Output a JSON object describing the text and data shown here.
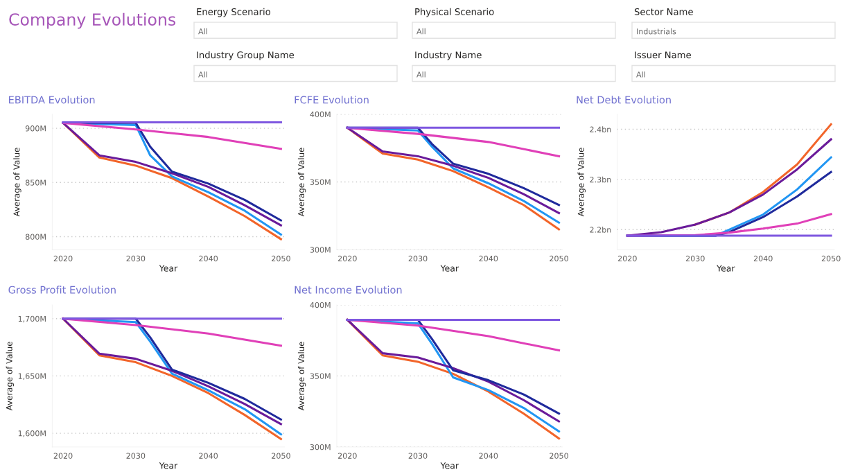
{
  "chart_data": [
    {
      "type": "other",
      "title": "Company Evolutions",
      "annotations": [
        "Energy Scenario",
        "All",
        "Physical Scenario",
        "All",
        "Sector Name",
        "Industrials",
        "Industry Group Name",
        "All",
        "Industry Name",
        "All",
        "Issuer Name",
        "All"
      ]
    },
    {
      "type": "line",
      "title": "EBITDA Evolution",
      "xlabel": "Year",
      "ylabel": "Average of Value",
      "xlim": [
        2018.5,
        2050.5
      ],
      "xticks": [
        2020,
        2030,
        2040,
        2050
      ],
      "ylim": [
        788,
        913
      ],
      "yticks": [
        {
          "value": 800,
          "label": "800M"
        },
        {
          "value": 850,
          "label": "850M"
        },
        {
          "value": 900,
          "label": "900M"
        }
      ],
      "grid": "y",
      "marker": "none",
      "line_style": "solid",
      "series": [
        {
          "color": "#f2652a",
          "x": [
            2020,
            2025,
            2030,
            2035,
            2040,
            2045,
            2050
          ],
          "values": [
            905,
            873,
            865.6,
            854,
            837,
            819,
            797.7
          ]
        },
        {
          "color": "#2196f3",
          "x": [
            2020,
            2030,
            2032,
            2035,
            2040,
            2045,
            2050
          ],
          "values": [
            905,
            903,
            875,
            855.6,
            841,
            824,
            802
          ]
        },
        {
          "color": "#6a1b9a",
          "x": [
            2020,
            2025,
            2030,
            2035,
            2040,
            2045,
            2050
          ],
          "values": [
            905,
            875,
            869,
            858.5,
            846,
            829,
            810.5
          ]
        },
        {
          "color": "#1f2a9c",
          "x": [
            2020,
            2030,
            2032,
            2035,
            2040,
            2045,
            2050
          ],
          "values": [
            905,
            905,
            883,
            860,
            849,
            834,
            815
          ]
        },
        {
          "color": "#e040b8",
          "x": [
            2020,
            2030,
            2040,
            2050
          ],
          "values": [
            905,
            899,
            892,
            881
          ]
        },
        {
          "color": "#7e57e0",
          "x": [
            2020,
            2050
          ],
          "values": [
            905.5,
            905.5
          ]
        }
      ]
    },
    {
      "type": "line",
      "title": "FCFE Evolution",
      "xlabel": "Year",
      "ylabel": "Average of Value",
      "xlim": [
        2018.5,
        2050.5
      ],
      "xticks": [
        2020,
        2030,
        2040,
        2050
      ],
      "ylim": [
        300,
        400
      ],
      "yticks": [
        {
          "value": 300,
          "label": "300M"
        },
        {
          "value": 350,
          "label": "350M"
        },
        {
          "value": 400,
          "label": "400M"
        }
      ],
      "grid": "y",
      "marker": "none",
      "line_style": "solid",
      "series": [
        {
          "color": "#f2652a",
          "x": [
            2020,
            2025,
            2030,
            2035,
            2040,
            2045,
            2050
          ],
          "values": [
            390,
            371,
            366.5,
            358,
            346,
            333,
            315
          ]
        },
        {
          "color": "#2196f3",
          "x": [
            2020,
            2030,
            2032,
            2035,
            2040,
            2045,
            2050
          ],
          "values": [
            390,
            388,
            376,
            360,
            349,
            336,
            320
          ]
        },
        {
          "color": "#6a1b9a",
          "x": [
            2020,
            2025,
            2030,
            2035,
            2040,
            2045,
            2050
          ],
          "values": [
            390,
            372.5,
            369,
            362,
            353,
            341,
            327
          ]
        },
        {
          "color": "#1f2a9c",
          "x": [
            2020,
            2030,
            2032,
            2035,
            2040,
            2045,
            2050
          ],
          "values": [
            390,
            390,
            378,
            363.5,
            356,
            345.5,
            333
          ]
        },
        {
          "color": "#e040b8",
          "x": [
            2020,
            2030,
            2040,
            2050
          ],
          "values": [
            390,
            385.5,
            379.5,
            369
          ]
        },
        {
          "color": "#7e57e0",
          "x": [
            2020,
            2050
          ],
          "values": [
            390,
            390
          ]
        }
      ]
    },
    {
      "type": "line",
      "title": "Net Debt Evolution",
      "xlabel": "Year",
      "ylabel": "Average of Value",
      "xlim": [
        2018.5,
        2050.5
      ],
      "xticks": [
        2020,
        2030,
        2040,
        2050
      ],
      "ylim": [
        2.16,
        2.43
      ],
      "yticks": [
        {
          "value": 2.2,
          "label": "2.2bn"
        },
        {
          "value": 2.3,
          "label": "2.3bn"
        },
        {
          "value": 2.4,
          "label": "2.4bn"
        }
      ],
      "grid": "y",
      "marker": "none",
      "line_style": "solid",
      "series": [
        {
          "color": "#f2652a",
          "x": [
            2030,
            2035,
            2040,
            2045,
            2050
          ],
          "values": [
            2.21,
            2.234,
            2.275,
            2.33,
            2.41
          ]
        },
        {
          "color": "#2196f3",
          "x": [
            2020,
            2033,
            2035,
            2040,
            2045,
            2050
          ],
          "values": [
            2.188,
            2.188,
            2.2,
            2.23,
            2.28,
            2.344
          ]
        },
        {
          "color": "#6a1b9a",
          "x": [
            2020,
            2025,
            2030,
            2035,
            2040,
            2045,
            2050
          ],
          "values": [
            2.188,
            2.195,
            2.21,
            2.234,
            2.27,
            2.32,
            2.38
          ]
        },
        {
          "color": "#1f2a9c",
          "x": [
            2020,
            2033,
            2035,
            2040,
            2045,
            2050
          ],
          "values": [
            2.188,
            2.188,
            2.195,
            2.225,
            2.266,
            2.315
          ]
        },
        {
          "color": "#e040b8",
          "x": [
            2020,
            2030,
            2035,
            2040,
            2045,
            2050
          ],
          "values": [
            2.188,
            2.189,
            2.194,
            2.202,
            2.212,
            2.231
          ]
        },
        {
          "color": "#7e57e0",
          "x": [
            2020,
            2050
          ],
          "values": [
            2.188,
            2.188
          ]
        }
      ]
    },
    {
      "type": "line",
      "title": "Gross Profit Evolution",
      "xlabel": "Year",
      "ylabel": "Average of Value",
      "xlim": [
        2018.5,
        2050.5
      ],
      "xticks": [
        2020,
        2030,
        2040,
        2050
      ],
      "ylim": [
        1588,
        1712
      ],
      "yticks": [
        {
          "value": 1600,
          "label": "1,600M"
        },
        {
          "value": 1650,
          "label": "1,650M"
        },
        {
          "value": 1700,
          "label": "1,700M"
        }
      ],
      "grid": "y",
      "marker": "none",
      "line_style": "solid",
      "series": [
        {
          "color": "#f2652a",
          "x": [
            2020,
            2025,
            2030,
            2035,
            2040,
            2045,
            2050
          ],
          "values": [
            1700,
            1668,
            1662,
            1650,
            1635,
            1616,
            1595
          ]
        },
        {
          "color": "#2196f3",
          "x": [
            2020,
            2030,
            2032,
            2035,
            2040,
            2045,
            2050
          ],
          "values": [
            1700,
            1697,
            1680,
            1652,
            1637.5,
            1621,
            1599
          ]
        },
        {
          "color": "#6a1b9a",
          "x": [
            2020,
            2025,
            2030,
            2035,
            2040,
            2045,
            2050
          ],
          "values": [
            1700,
            1669.4,
            1665,
            1654.5,
            1641,
            1625.5,
            1608
          ]
        },
        {
          "color": "#1f2a9c",
          "x": [
            2020,
            2030,
            2032,
            2035,
            2040,
            2045,
            2050
          ],
          "values": [
            1700,
            1700,
            1683.6,
            1655.5,
            1644,
            1630,
            1612
          ]
        },
        {
          "color": "#e040b8",
          "x": [
            2020,
            2030,
            2040,
            2050
          ],
          "values": [
            1700,
            1694.4,
            1687,
            1676.4
          ]
        },
        {
          "color": "#7e57e0",
          "x": [
            2020,
            2050
          ],
          "values": [
            1700,
            1700
          ]
        }
      ]
    },
    {
      "type": "line",
      "title": "Net Income Evolution",
      "xlabel": "Year",
      "ylabel": "Average of Value",
      "xlim": [
        2018.5,
        2050.5
      ],
      "xticks": [
        2020,
        2030,
        2040,
        2050
      ],
      "ylim": [
        300,
        400
      ],
      "yticks": [
        {
          "value": 300,
          "label": "300M"
        },
        {
          "value": 350,
          "label": "350M"
        },
        {
          "value": 400,
          "label": "400M"
        }
      ],
      "grid": "y",
      "marker": "none",
      "line_style": "solid",
      "series": [
        {
          "color": "#f2652a",
          "x": [
            2020,
            2025,
            2030,
            2035,
            2040,
            2045,
            2050
          ],
          "values": [
            389.5,
            364.5,
            360,
            351.5,
            339,
            323.5,
            306
          ]
        },
        {
          "color": "#2196f3",
          "x": [
            2020,
            2030,
            2032,
            2035,
            2040,
            2045,
            2050
          ],
          "values": [
            389.5,
            387,
            372.6,
            349,
            340,
            327.5,
            311
          ]
        },
        {
          "color": "#6a1b9a",
          "x": [
            2020,
            2025,
            2030,
            2035,
            2040,
            2045,
            2050
          ],
          "values": [
            389.5,
            366,
            363,
            355.5,
            346,
            333,
            318
          ]
        },
        {
          "color": "#1f2a9c",
          "x": [
            2020,
            2030,
            2032,
            2035,
            2040,
            2045,
            2050
          ],
          "values": [
            389.5,
            389.5,
            376,
            354,
            347,
            337,
            323.5
          ]
        },
        {
          "color": "#e040b8",
          "x": [
            2020,
            2030,
            2040,
            2050
          ],
          "values": [
            389.5,
            385.5,
            378,
            368
          ]
        },
        {
          "color": "#7e57e0",
          "x": [
            2020,
            2050
          ],
          "values": [
            389.5,
            389.5
          ]
        }
      ]
    }
  ]
}
